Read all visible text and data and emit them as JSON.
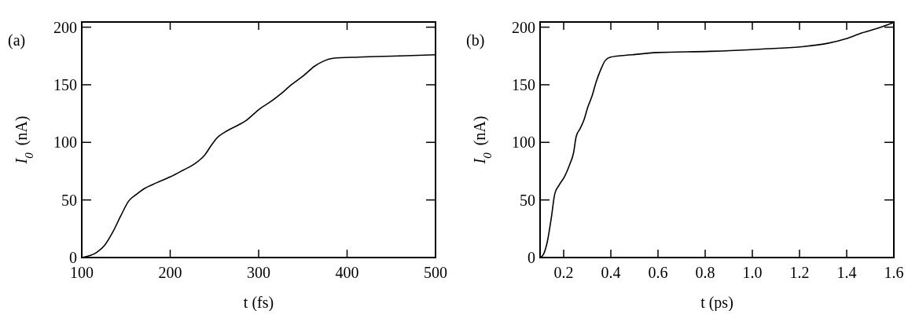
{
  "chart_data": [
    {
      "type": "line",
      "xlabel": "t (fs)",
      "ylabel": "I$_{0}$ (nA)",
      "annotations": [
        "(a)"
      ],
      "xlim": [
        100,
        500
      ],
      "xticks": [
        100,
        200,
        300,
        400,
        500
      ],
      "ylim": [
        0,
        204.5
      ],
      "yticks": [
        0,
        50,
        100,
        150,
        200
      ],
      "series": [
        {
          "color": "#000000",
          "x": [
            100,
            117,
            126,
            135,
            144,
            153,
            162,
            171,
            185,
            200,
            215,
            227,
            239,
            247,
            253,
            262,
            277,
            286,
            295,
            301,
            313,
            325,
            337,
            351,
            363,
            372,
            384,
            413,
            458,
            500
          ],
          "values": [
            0,
            4.5,
            10.7,
            22,
            36,
            49,
            55,
            60,
            65,
            70,
            76,
            81,
            89,
            98,
            104,
            109,
            115,
            119,
            125,
            129,
            135,
            142,
            150,
            158,
            166,
            170,
            173,
            174,
            175,
            176
          ]
        }
      ]
    },
    {
      "type": "line",
      "xlabel": "t (ps)",
      "ylabel": "I$_{0}$ (nA)",
      "annotations": [
        "(b)"
      ],
      "xlim": [
        0.1,
        1.6
      ],
      "xticks": [
        0.2,
        0.4,
        0.6,
        0.8,
        {
          "value": 1,
          "label": "1.0"
        },
        1.2,
        1.4,
        1.6
      ],
      "ylim": [
        0,
        204.5
      ],
      "yticks": [
        0,
        50,
        100,
        150,
        200
      ],
      "series": [
        {
          "color": "#000000",
          "x": [
            0.1,
            0.114,
            0.131,
            0.148,
            0.162,
            0.181,
            0.203,
            0.226,
            0.242,
            0.253,
            0.27,
            0.287,
            0.303,
            0.32,
            0.337,
            0.359,
            0.376,
            0.398,
            0.487,
            0.598,
            0.82,
            1.042,
            1.209,
            1.32,
            1.398,
            1.464,
            1.531,
            1.598
          ],
          "values": [
            0,
            2.7,
            14,
            35,
            55,
            63,
            70,
            81,
            91,
            105,
            112,
            120,
            131,
            140,
            152,
            164,
            171,
            174,
            176,
            178,
            179,
            181,
            183,
            186,
            190,
            195,
            199,
            204
          ]
        }
      ]
    }
  ]
}
